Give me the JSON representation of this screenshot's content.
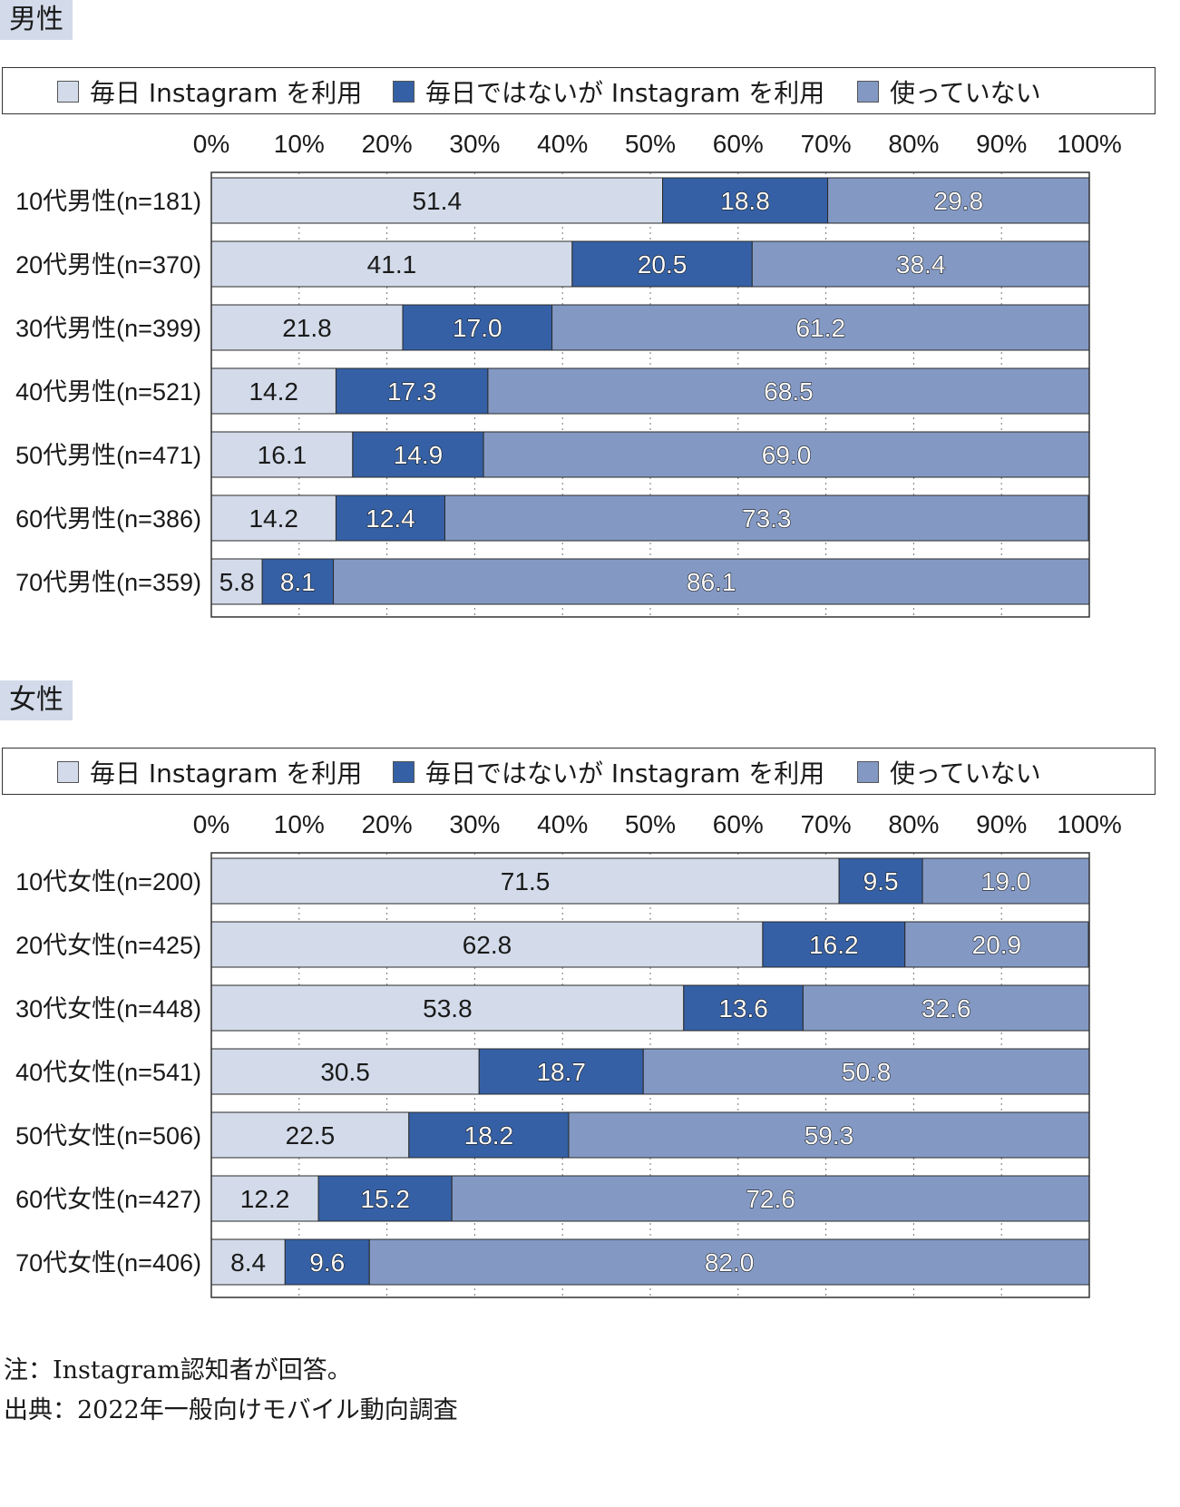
{
  "colors": {
    "daily": "#d3dbea",
    "not_daily": "#3560a5",
    "not_using": "#8399c4"
  },
  "legend": {
    "daily": "毎日 Instagram を利用",
    "not_daily": "毎日ではないが Instagram を利用",
    "not_using": "使っていない"
  },
  "sections": {
    "male": {
      "title": "男性"
    },
    "female": {
      "title": "女性"
    }
  },
  "chart_data": [
    {
      "type": "bar",
      "orientation": "horizontal",
      "stacked": true,
      "title": "男性",
      "xlim": [
        0,
        100
      ],
      "x_ticks": [
        "0%",
        "10%",
        "20%",
        "30%",
        "40%",
        "50%",
        "60%",
        "70%",
        "80%",
        "90%",
        "100%"
      ],
      "categories": [
        "10代男性(n=181)",
        "20代男性(n=370)",
        "30代男性(n=399)",
        "40代男性(n=521)",
        "50代男性(n=471)",
        "60代男性(n=386)",
        "70代男性(n=359)"
      ],
      "series": [
        {
          "name": "毎日 Instagram を利用",
          "values": [
            51.4,
            41.1,
            21.8,
            14.2,
            16.1,
            14.2,
            5.8
          ]
        },
        {
          "name": "毎日ではないが Instagram を利用",
          "values": [
            18.8,
            20.5,
            17.0,
            17.3,
            14.9,
            12.4,
            8.1
          ]
        },
        {
          "name": "使っていない",
          "values": [
            29.8,
            38.4,
            61.2,
            68.5,
            69.0,
            73.3,
            86.1
          ]
        }
      ],
      "grid": true,
      "legend_position": "top"
    },
    {
      "type": "bar",
      "orientation": "horizontal",
      "stacked": true,
      "title": "女性",
      "xlim": [
        0,
        100
      ],
      "x_ticks": [
        "0%",
        "10%",
        "20%",
        "30%",
        "40%",
        "50%",
        "60%",
        "70%",
        "80%",
        "90%",
        "100%"
      ],
      "categories": [
        "10代女性(n=200)",
        "20代女性(n=425)",
        "30代女性(n=448)",
        "40代女性(n=541)",
        "50代女性(n=506)",
        "60代女性(n=427)",
        "70代女性(n=406)"
      ],
      "series": [
        {
          "name": "毎日 Instagram を利用",
          "values": [
            71.5,
            62.8,
            53.8,
            30.5,
            22.5,
            12.2,
            8.4
          ]
        },
        {
          "name": "毎日ではないが Instagram を利用",
          "values": [
            9.5,
            16.2,
            13.6,
            18.7,
            18.2,
            15.2,
            9.6
          ]
        },
        {
          "name": "使っていない",
          "values": [
            19.0,
            20.9,
            32.6,
            50.8,
            59.3,
            72.6,
            82.0
          ]
        }
      ],
      "grid": true,
      "legend_position": "top"
    }
  ],
  "notes": {
    "note": "注：Instagram認知者が回答。",
    "source": "出典：2022年一般向けモバイル動向調査"
  }
}
